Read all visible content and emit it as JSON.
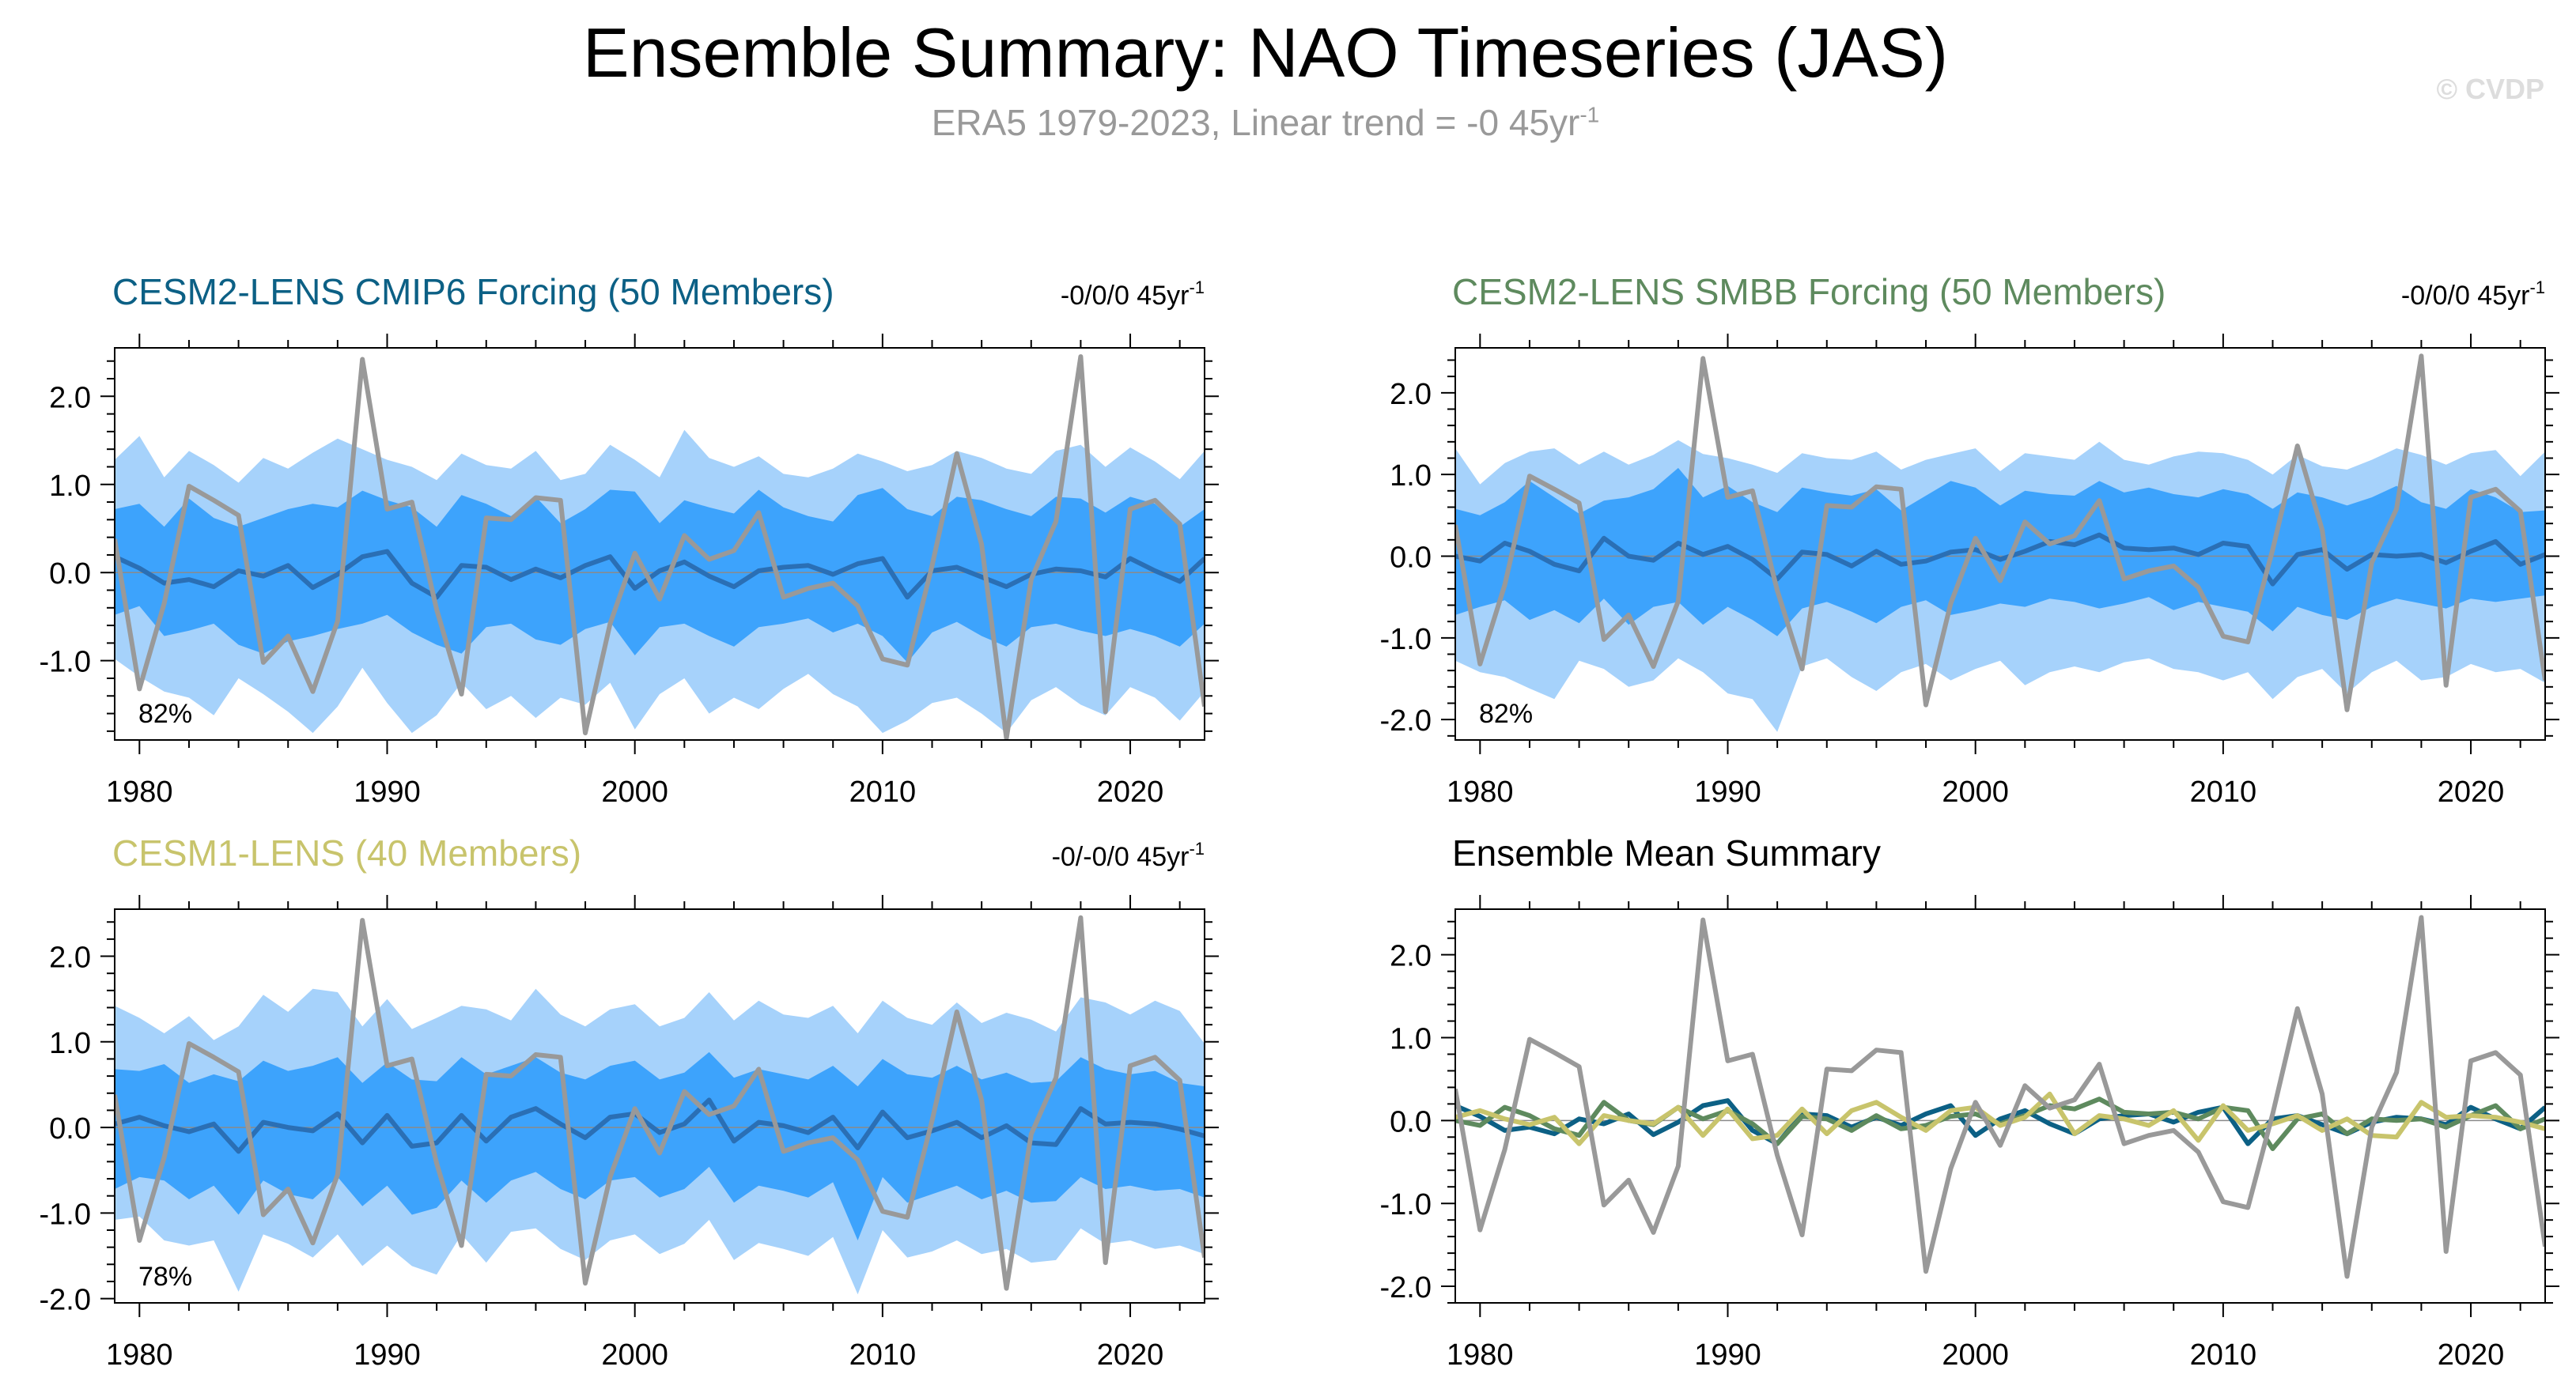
{
  "header": {
    "title": "Ensemble Summary: NAO Timeseries (JAS)",
    "subtitle_main": "ERA5 1979-2023, Linear trend = -0 45yr",
    "subtitle_sup": "-1",
    "watermark": "© CVDP"
  },
  "colors": {
    "obs": "#999999",
    "ens_mean_line": "#2a6fb5",
    "band_outer": "#a6d2fb",
    "band_inner": "#3da3fc",
    "cesm2_cmip6": "#0c6085",
    "cesm2_smbb": "#5e8a5e",
    "cesm1": "#c8c46c"
  },
  "chart_data": [
    {
      "type": "line",
      "id": "cmip6",
      "title": "CESM2-LENS CMIP6 Forcing (50 Members)",
      "trend_main": "-0/0/0 45yr",
      "trend_sup": "-1",
      "percent_label": "82%",
      "xlim": [
        1979,
        2023
      ],
      "ylim": [
        -1.9,
        2.55
      ],
      "xticks": [
        "1980",
        "1990",
        "2000",
        "2010",
        "2020"
      ],
      "yticks": [
        "2.0",
        "1.0",
        "0.0",
        "-1.0"
      ],
      "ens_mean": [
        0.18,
        0.05,
        -0.12,
        -0.08,
        -0.16,
        0.02,
        -0.04,
        0.08,
        -0.17,
        -0.02,
        0.18,
        0.24,
        -0.12,
        -0.28,
        0.08,
        0.06,
        -0.08,
        0.04,
        -0.06,
        0.08,
        0.18,
        -0.18,
        0.02,
        0.12,
        -0.04,
        -0.16,
        0.02,
        0.06,
        0.08,
        -0.02,
        0.1,
        0.16,
        -0.28,
        0.02,
        0.06,
        -0.05,
        -0.16,
        -0.02,
        0.04,
        0.02,
        -0.05,
        0.16,
        0.02,
        -0.1,
        0.16
      ],
      "inner_upper": [
        0.72,
        0.78,
        0.52,
        0.84,
        0.62,
        0.52,
        0.62,
        0.72,
        0.78,
        0.74,
        0.93,
        0.82,
        0.74,
        0.52,
        0.88,
        0.78,
        0.64,
        0.86,
        0.56,
        0.72,
        0.94,
        0.92,
        0.56,
        0.82,
        0.74,
        0.67,
        0.94,
        0.74,
        0.64,
        0.58,
        0.88,
        0.96,
        0.72,
        0.64,
        0.86,
        0.82,
        0.72,
        0.64,
        0.86,
        0.84,
        0.68,
        0.86,
        0.78,
        0.52,
        0.72
      ],
      "inner_lower": [
        -0.48,
        -0.38,
        -0.72,
        -0.66,
        -0.58,
        -0.82,
        -0.92,
        -0.78,
        -0.72,
        -0.64,
        -0.58,
        -0.48,
        -0.68,
        -0.82,
        -0.92,
        -0.62,
        -0.58,
        -0.76,
        -0.82,
        -0.64,
        -0.56,
        -0.94,
        -0.62,
        -0.58,
        -0.72,
        -0.84,
        -0.62,
        -0.58,
        -0.52,
        -0.68,
        -0.58,
        -0.72,
        -1.02,
        -0.68,
        -0.56,
        -0.72,
        -0.84,
        -0.62,
        -0.58,
        -0.66,
        -0.72,
        -0.64,
        -0.72,
        -0.84,
        -0.58
      ],
      "outer_upper": [
        1.28,
        1.55,
        1.08,
        1.38,
        1.22,
        1.02,
        1.3,
        1.18,
        1.36,
        1.52,
        1.4,
        1.28,
        1.2,
        1.05,
        1.35,
        1.22,
        1.18,
        1.38,
        1.05,
        1.12,
        1.45,
        1.28,
        1.08,
        1.62,
        1.3,
        1.2,
        1.32,
        1.12,
        1.08,
        1.18,
        1.35,
        1.26,
        1.15,
        1.22,
        1.38,
        1.3,
        1.18,
        1.12,
        1.38,
        1.45,
        1.2,
        1.42,
        1.26,
        1.06,
        1.38
      ],
      "outer_lower": [
        -0.98,
        -1.18,
        -1.35,
        -1.42,
        -1.62,
        -1.2,
        -1.38,
        -1.58,
        -1.82,
        -1.52,
        -1.08,
        -1.48,
        -1.82,
        -1.62,
        -1.25,
        -1.55,
        -1.4,
        -1.65,
        -1.42,
        -1.5,
        -1.25,
        -1.78,
        -1.38,
        -1.2,
        -1.6,
        -1.42,
        -1.55,
        -1.32,
        -1.15,
        -1.38,
        -1.52,
        -1.82,
        -1.68,
        -1.48,
        -1.42,
        -1.6,
        -1.82,
        -1.45,
        -1.3,
        -1.5,
        -1.62,
        -1.3,
        -1.42,
        -1.68,
        -1.35
      ]
    },
    {
      "type": "line",
      "id": "smbb",
      "title": "CESM2-LENS SMBB Forcing (50 Members)",
      "trend_main": "-0/0/0 45yr",
      "trend_sup": "-1",
      "percent_label": "82%",
      "xlim": [
        1979,
        2023
      ],
      "ylim": [
        -2.25,
        2.55
      ],
      "xticks": [
        "1980",
        "1990",
        "2000",
        "2010",
        "2020"
      ],
      "yticks": [
        "2.0",
        "1.0",
        "0.0",
        "-1.0",
        "-2.0"
      ],
      "ens_mean": [
        0.0,
        -0.06,
        0.16,
        0.06,
        -0.1,
        -0.18,
        0.22,
        0.0,
        -0.05,
        0.16,
        0.02,
        0.12,
        -0.04,
        -0.28,
        0.05,
        0.02,
        -0.12,
        0.06,
        -0.1,
        -0.06,
        0.05,
        0.08,
        -0.04,
        0.06,
        0.18,
        0.14,
        0.26,
        0.1,
        0.08,
        0.1,
        0.02,
        0.16,
        0.12,
        -0.34,
        0.02,
        0.08,
        -0.16,
        0.02,
        0.0,
        0.02,
        -0.08,
        0.06,
        0.18,
        -0.1,
        0.02
      ],
      "inner_upper": [
        0.58,
        0.5,
        0.66,
        0.92,
        0.72,
        0.52,
        0.68,
        0.72,
        0.82,
        1.08,
        0.72,
        0.86,
        0.66,
        0.54,
        0.84,
        0.78,
        0.74,
        0.82,
        0.56,
        0.74,
        0.92,
        0.84,
        0.62,
        0.8,
        0.76,
        0.74,
        0.92,
        0.78,
        0.84,
        0.76,
        0.72,
        0.82,
        0.76,
        0.58,
        0.78,
        0.72,
        0.62,
        0.72,
        0.86,
        0.66,
        0.58,
        0.82,
        0.72,
        0.54,
        0.56
      ],
      "inner_lower": [
        -0.72,
        -0.62,
        -0.54,
        -0.78,
        -0.66,
        -0.82,
        -0.52,
        -0.84,
        -0.62,
        -0.56,
        -0.84,
        -0.62,
        -0.78,
        -0.98,
        -0.64,
        -0.56,
        -0.68,
        -0.82,
        -0.62,
        -0.54,
        -0.72,
        -0.66,
        -0.58,
        -0.62,
        -0.52,
        -0.56,
        -0.64,
        -0.58,
        -0.5,
        -0.66,
        -0.56,
        -0.62,
        -0.68,
        -0.92,
        -0.62,
        -0.72,
        -0.78,
        -0.62,
        -0.52,
        -0.58,
        -0.64,
        -0.52,
        -0.56,
        -0.52,
        -0.48
      ],
      "outer_upper": [
        1.32,
        0.88,
        1.14,
        1.28,
        1.32,
        1.12,
        1.28,
        1.12,
        1.24,
        1.42,
        1.25,
        1.2,
        1.12,
        1.02,
        1.26,
        1.2,
        1.18,
        1.28,
        1.06,
        1.18,
        1.25,
        1.32,
        1.04,
        1.26,
        1.22,
        1.18,
        1.4,
        1.18,
        1.12,
        1.22,
        1.28,
        1.26,
        1.18,
        1.0,
        1.24,
        1.1,
        1.06,
        1.18,
        1.32,
        1.24,
        1.12,
        1.26,
        1.3,
        0.98,
        1.28
      ],
      "outer_lower": [
        -1.28,
        -1.42,
        -1.48,
        -1.62,
        -1.75,
        -1.28,
        -1.38,
        -1.6,
        -1.52,
        -1.25,
        -1.42,
        -1.68,
        -1.75,
        -2.15,
        -1.35,
        -1.25,
        -1.48,
        -1.65,
        -1.42,
        -1.32,
        -1.52,
        -1.38,
        -1.28,
        -1.58,
        -1.42,
        -1.35,
        -1.42,
        -1.3,
        -1.25,
        -1.38,
        -1.42,
        -1.52,
        -1.42,
        -1.75,
        -1.48,
        -1.38,
        -1.68,
        -1.42,
        -1.28,
        -1.52,
        -1.48,
        -1.32,
        -1.42,
        -1.38,
        -1.55
      ]
    },
    {
      "type": "line",
      "id": "cesm1",
      "title": "CESM1-LENS (40 Members)",
      "trend_main": "-0/-0/0 45yr",
      "trend_sup": "-1",
      "percent_label": "78%",
      "xlim": [
        1979,
        2023
      ],
      "ylim": [
        -2.05,
        2.55
      ],
      "xticks": [
        "1980",
        "1990",
        "2000",
        "2010",
        "2020"
      ],
      "yticks": [
        "2.0",
        "1.0",
        "0.0",
        "-1.0",
        "-2.0"
      ],
      "ens_mean": [
        0.04,
        0.12,
        0.02,
        -0.05,
        0.04,
        -0.28,
        0.06,
        0.0,
        -0.04,
        0.16,
        -0.18,
        0.14,
        -0.22,
        -0.18,
        0.14,
        -0.16,
        0.12,
        0.22,
        0.04,
        -0.12,
        0.12,
        0.16,
        -0.06,
        0.04,
        0.32,
        -0.16,
        0.06,
        0.02,
        -0.06,
        0.12,
        -0.24,
        0.18,
        -0.12,
        -0.04,
        0.06,
        -0.12,
        0.02,
        -0.18,
        -0.2,
        0.22,
        0.04,
        0.06,
        0.04,
        -0.02,
        -0.1
      ],
      "inner_upper": [
        0.68,
        0.66,
        0.74,
        0.52,
        0.62,
        0.54,
        0.78,
        0.66,
        0.72,
        0.82,
        0.52,
        0.76,
        0.56,
        0.54,
        0.82,
        0.62,
        0.72,
        0.82,
        0.64,
        0.56,
        0.72,
        0.78,
        0.56,
        0.64,
        0.88,
        0.58,
        0.68,
        0.62,
        0.56,
        0.72,
        0.48,
        0.8,
        0.62,
        0.58,
        0.72,
        0.56,
        0.64,
        0.52,
        0.54,
        0.82,
        0.68,
        0.62,
        0.66,
        0.52,
        0.48
      ],
      "inner_lower": [
        -0.72,
        -0.58,
        -0.62,
        -0.84,
        -0.68,
        -1.02,
        -0.62,
        -0.78,
        -0.84,
        -0.58,
        -0.92,
        -0.68,
        -1.02,
        -0.94,
        -0.62,
        -0.88,
        -0.62,
        -0.52,
        -0.72,
        -0.84,
        -0.62,
        -0.58,
        -0.82,
        -0.72,
        -0.46,
        -0.88,
        -0.68,
        -0.74,
        -0.82,
        -0.64,
        -1.32,
        -0.58,
        -0.88,
        -0.78,
        -0.68,
        -0.84,
        -0.74,
        -0.88,
        -0.86,
        -0.58,
        -0.72,
        -0.68,
        -0.74,
        -0.72,
        -0.82
      ],
      "outer_upper": [
        1.42,
        1.28,
        1.1,
        1.3,
        1.02,
        1.18,
        1.55,
        1.35,
        1.62,
        1.58,
        1.18,
        1.5,
        1.15,
        1.28,
        1.42,
        1.38,
        1.25,
        1.62,
        1.32,
        1.18,
        1.38,
        1.44,
        1.18,
        1.28,
        1.58,
        1.25,
        1.48,
        1.32,
        1.28,
        1.42,
        1.1,
        1.48,
        1.28,
        1.2,
        1.46,
        1.22,
        1.34,
        1.26,
        1.12,
        1.52,
        1.46,
        1.32,
        1.48,
        1.36,
        0.98
      ],
      "outer_lower": [
        -1.08,
        -1.04,
        -1.32,
        -1.38,
        -1.32,
        -1.92,
        -1.25,
        -1.36,
        -1.52,
        -1.25,
        -1.62,
        -1.38,
        -1.62,
        -1.72,
        -1.25,
        -1.58,
        -1.22,
        -1.18,
        -1.42,
        -1.55,
        -1.32,
        -1.25,
        -1.48,
        -1.36,
        -1.08,
        -1.55,
        -1.35,
        -1.42,
        -1.5,
        -1.28,
        -1.95,
        -1.2,
        -1.52,
        -1.45,
        -1.32,
        -1.48,
        -1.42,
        -1.58,
        -1.55,
        -1.18,
        -1.36,
        -1.32,
        -1.42,
        -1.38,
        -1.48
      ]
    },
    {
      "type": "line",
      "id": "summary",
      "title": "Ensemble Mean Summary",
      "xlim": [
        1979,
        2023
      ],
      "ylim": [
        -2.2,
        2.55
      ],
      "xticks": [
        "1980",
        "1990",
        "2000",
        "2010",
        "2020"
      ],
      "yticks": [
        "2.0",
        "1.0",
        "0.0",
        "-1.0",
        "-2.0"
      ],
      "series_ids": [
        "cmip6",
        "smbb",
        "cesm1"
      ]
    }
  ],
  "obs_series": {
    "name": "ERA5",
    "years_start": 1979,
    "values": [
      0.38,
      -1.32,
      -0.35,
      0.98,
      0.82,
      0.65,
      -1.02,
      -0.72,
      -1.35,
      -0.55,
      2.42,
      0.72,
      0.8,
      -0.42,
      -1.38,
      0.62,
      0.6,
      0.85,
      0.82,
      -1.82,
      -0.58,
      0.22,
      -0.3,
      0.42,
      0.15,
      0.25,
      0.68,
      -0.28,
      -0.18,
      -0.12,
      -0.38,
      -0.98,
      -1.05,
      0.08,
      1.35,
      0.32,
      -1.88,
      -0.08,
      0.58,
      2.45,
      -1.58,
      0.72,
      0.82,
      0.55,
      -1.52
    ]
  }
}
